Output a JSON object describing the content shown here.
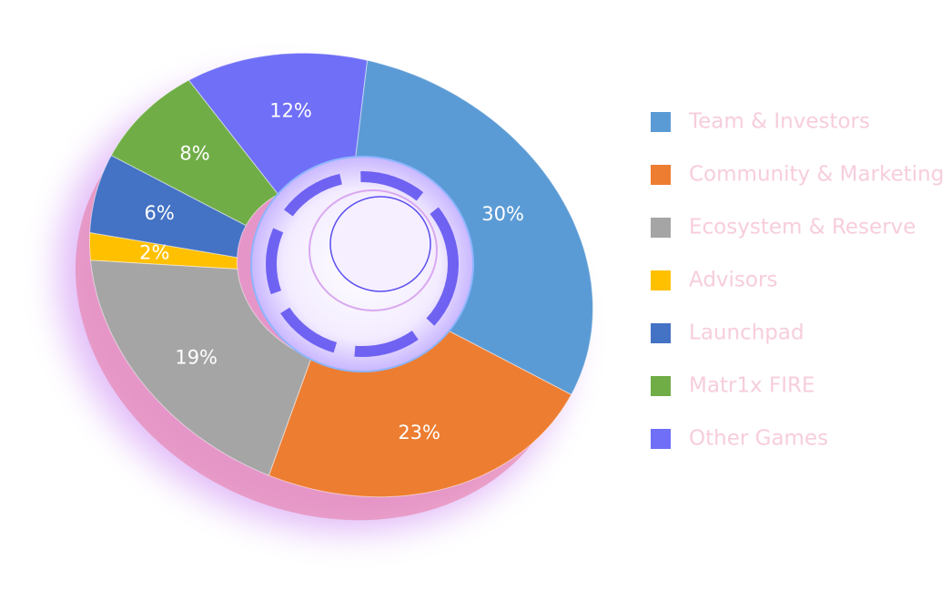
{
  "chart_data": {
    "type": "pie",
    "categories": [
      "Team & Investors",
      "Community & Marketing",
      "Ecosystem & Reserve",
      "Advisors",
      "Launchpad",
      "Matr1x FIRE",
      "Other Games"
    ],
    "values": [
      30,
      23,
      19,
      2,
      6,
      8,
      12
    ],
    "value_labels": [
      "30%",
      "23%",
      "19%",
      "2%",
      "6%",
      "8%",
      "12%"
    ],
    "colors": [
      "#5b9bd5",
      "#ed7d31",
      "#a5a5a5",
      "#ffc000",
      "#4472c4",
      "#70ad47",
      "#6f6ff7"
    ]
  }
}
